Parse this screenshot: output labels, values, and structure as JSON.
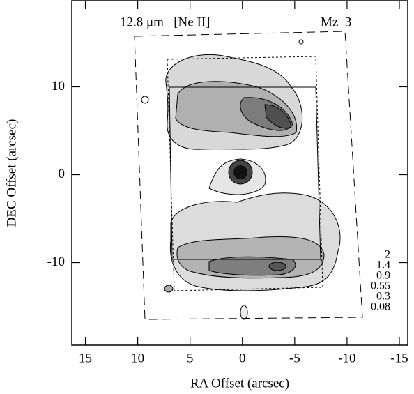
{
  "chart_data": {
    "type": "contour",
    "title": "12.8 μm   [Ne II]",
    "object_label": "Mz  3",
    "xlabel": "RA Offset (arcsec)",
    "ylabel": "DEC Offset (arcsec)",
    "xlim": [
      16.3,
      -15.8
    ],
    "ylim": [
      -19.4,
      19.8
    ],
    "xticks": [
      15,
      10,
      5,
      0,
      -5,
      -10,
      -15
    ],
    "yticks": [
      10,
      0,
      -10
    ],
    "contour_levels": [
      2,
      1.4,
      0.9,
      0.55,
      0.3,
      0.08
    ]
  }
}
